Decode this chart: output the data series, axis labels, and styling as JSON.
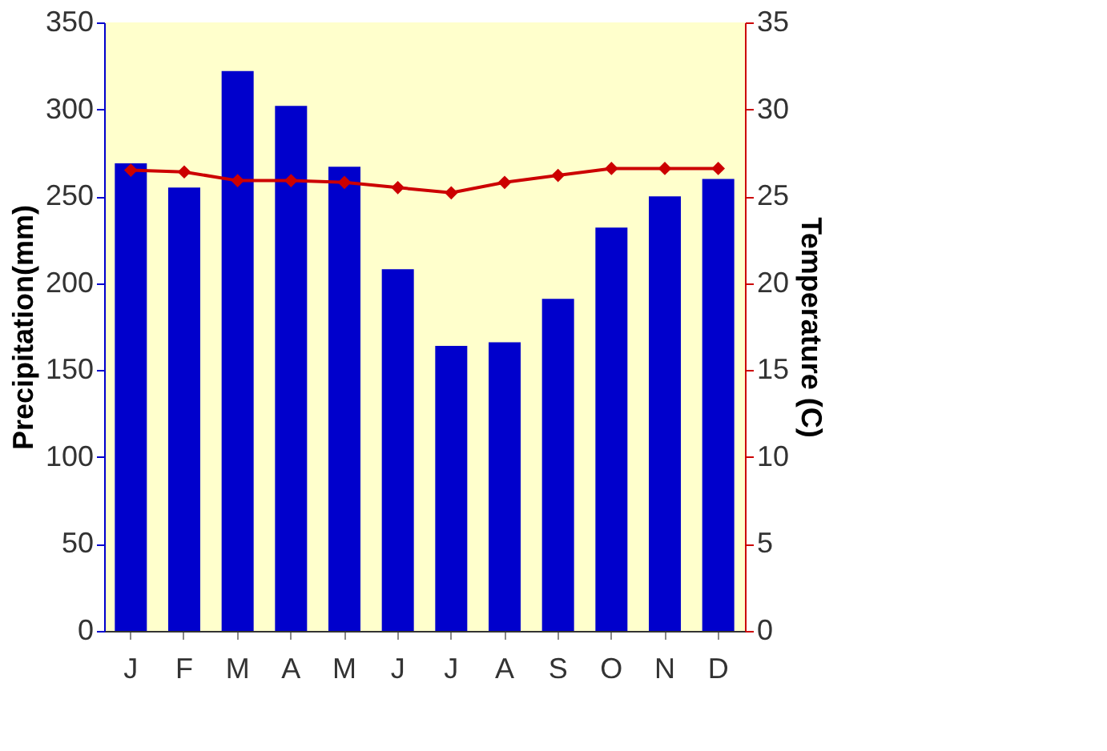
{
  "chart_data": {
    "type": "bar",
    "categories": [
      "J",
      "F",
      "M",
      "A",
      "M",
      "J",
      "J",
      "A",
      "S",
      "O",
      "N",
      "D"
    ],
    "ylabel": "Precipitation(mm)",
    "y2label": "Temperature (C)",
    "ylim": [
      0,
      350
    ],
    "yticks": [
      0,
      50,
      100,
      150,
      200,
      250,
      300,
      350
    ],
    "y2lim": [
      0,
      35
    ],
    "y2ticks": [
      0,
      5,
      10,
      15,
      20,
      25,
      30,
      35
    ],
    "grid": false,
    "series": [
      {
        "color": "#0000cc",
        "values": [
          269,
          255,
          322,
          302,
          267,
          208,
          164,
          166,
          191,
          232,
          250,
          260
        ]
      },
      {
        "type": "line",
        "axis": "y2",
        "color": "#cc0000",
        "marker": "diamond",
        "line_style": "solid",
        "values": [
          26.5,
          26.4,
          25.9,
          25.9,
          25.8,
          25.5,
          25.2,
          25.8,
          26.2,
          26.6,
          26.6,
          26.6
        ]
      }
    ]
  }
}
